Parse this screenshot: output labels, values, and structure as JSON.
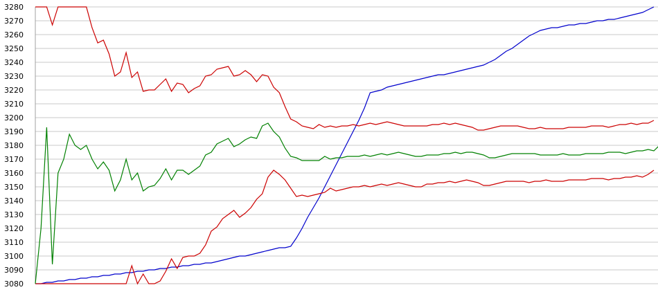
{
  "chart_data": {
    "type": "line",
    "title": "",
    "xlabel": "",
    "ylabel": "",
    "ylim": [
      3080,
      3280
    ],
    "yticks": [
      3080,
      3090,
      3100,
      3110,
      3120,
      3130,
      3140,
      3150,
      3160,
      3170,
      3180,
      3190,
      3200,
      3210,
      3220,
      3230,
      3240,
      3250,
      3260,
      3270,
      3280
    ],
    "grid": "horizontal",
    "legend": "none",
    "x_count": 110,
    "series": [
      {
        "color": "#0000cc",
        "values": [
          3080,
          3080,
          3081,
          3081,
          3082,
          3082,
          3083,
          3083,
          3084,
          3084,
          3085,
          3085,
          3086,
          3086,
          3087,
          3087,
          3088,
          3088,
          3089,
          3089,
          3090,
          3090,
          3091,
          3091,
          3092,
          3092,
          3093,
          3093,
          3094,
          3094,
          3095,
          3095,
          3096,
          3097,
          3098,
          3099,
          3100,
          3100,
          3101,
          3102,
          3103,
          3104,
          3105,
          3106,
          3106,
          3107,
          3113,
          3120,
          3128,
          3135,
          3142,
          3150,
          3158,
          3166,
          3174,
          3182,
          3190,
          3198,
          3207,
          3218,
          3219,
          3220,
          3222,
          3223,
          3224,
          3225,
          3226,
          3227,
          3228,
          3229,
          3230,
          3231,
          3231,
          3232,
          3233,
          3234,
          3235,
          3236,
          3237,
          3238,
          3240,
          3242,
          3245,
          3248,
          3250,
          3253,
          3256,
          3259,
          3261,
          3263,
          3264,
          3265,
          3265,
          3266,
          3267,
          3267,
          3268,
          3268,
          3269,
          3270,
          3270,
          3271,
          3271,
          3272,
          3273,
          3274,
          3275,
          3276,
          3278,
          3280
        ]
      },
      {
        "color": "#cc0000",
        "values": [
          3280,
          3280,
          3280,
          3267,
          3280,
          3280,
          3280,
          3280,
          3280,
          3280,
          3265,
          3254,
          3256,
          3246,
          3230,
          3233,
          3247,
          3229,
          3233,
          3219,
          3220,
          3220,
          3224,
          3228,
          3219,
          3225,
          3224,
          3218,
          3221,
          3223,
          3230,
          3231,
          3235,
          3236,
          3237,
          3230,
          3231,
          3234,
          3231,
          3226,
          3231,
          3230,
          3222,
          3218,
          3208,
          3199,
          3197,
          3194,
          3193,
          3192,
          3195,
          3193,
          3194,
          3193,
          3194,
          3194,
          3195,
          3194,
          3195,
          3196,
          3195,
          3196,
          3197,
          3196,
          3195,
          3194,
          3194,
          3194,
          3194,
          3194,
          3195,
          3195,
          3196,
          3195,
          3196,
          3195,
          3194,
          3193,
          3191,
          3191,
          3192,
          3193,
          3194,
          3194,
          3194,
          3194,
          3193,
          3192,
          3192,
          3193,
          3192,
          3192,
          3192,
          3192,
          3193,
          3193,
          3193,
          3193,
          3194,
          3194,
          3194,
          3193,
          3194,
          3195,
          3195,
          3196,
          3195,
          3196,
          3196,
          3198
        ]
      },
      {
        "color": "#cc0000",
        "values": [
          3080,
          3080,
          3080,
          3080,
          3080,
          3080,
          3080,
          3080,
          3080,
          3080,
          3080,
          3080,
          3080,
          3080,
          3080,
          3080,
          3080,
          3093,
          3080,
          3087,
          3080,
          3080,
          3082,
          3089,
          3098,
          3091,
          3099,
          3100,
          3100,
          3102,
          3108,
          3118,
          3121,
          3127,
          3130,
          3133,
          3128,
          3131,
          3135,
          3141,
          3145,
          3157,
          3162,
          3159,
          3155,
          3149,
          3143,
          3144,
          3143,
          3144,
          3145,
          3146,
          3149,
          3147,
          3148,
          3149,
          3150,
          3150,
          3151,
          3150,
          3151,
          3152,
          3151,
          3152,
          3153,
          3152,
          3151,
          3150,
          3150,
          3152,
          3152,
          3153,
          3153,
          3154,
          3153,
          3154,
          3155,
          3154,
          3153,
          3151,
          3151,
          3152,
          3153,
          3154,
          3154,
          3154,
          3154,
          3153,
          3154,
          3154,
          3155,
          3154,
          3154,
          3154,
          3155,
          3155,
          3155,
          3155,
          3156,
          3156,
          3156,
          3155,
          3156,
          3156,
          3157,
          3157,
          3158,
          3157,
          3159,
          3162
        ]
      },
      {
        "color": "#008000",
        "values": [
          3080,
          3120,
          3193,
          3094,
          3160,
          3170,
          3188,
          3180,
          3177,
          3180,
          3170,
          3163,
          3168,
          3162,
          3147,
          3155,
          3170,
          3155,
          3160,
          3147,
          3150,
          3151,
          3156,
          3163,
          3155,
          3162,
          3162,
          3159,
          3162,
          3165,
          3173,
          3175,
          3181,
          3183,
          3185,
          3179,
          3181,
          3184,
          3186,
          3185,
          3194,
          3196,
          3190,
          3186,
          3178,
          3172,
          3171,
          3169,
          3169,
          3169,
          3169,
          3172,
          3170,
          3171,
          3171,
          3172,
          3172,
          3172,
          3173,
          3172,
          3173,
          3174,
          3173,
          3174,
          3175,
          3174,
          3173,
          3172,
          3172,
          3173,
          3173,
          3173,
          3174,
          3174,
          3175,
          3174,
          3175,
          3175,
          3174,
          3173,
          3171,
          3171,
          3172,
          3173,
          3174,
          3174,
          3174,
          3174,
          3174,
          3173,
          3173,
          3173,
          3173,
          3174,
          3173,
          3173,
          3173,
          3174,
          3174,
          3174,
          3174,
          3175,
          3175,
          3175,
          3174,
          3175,
          3176,
          3176,
          3177,
          3176,
          3180
        ]
      }
    ]
  }
}
